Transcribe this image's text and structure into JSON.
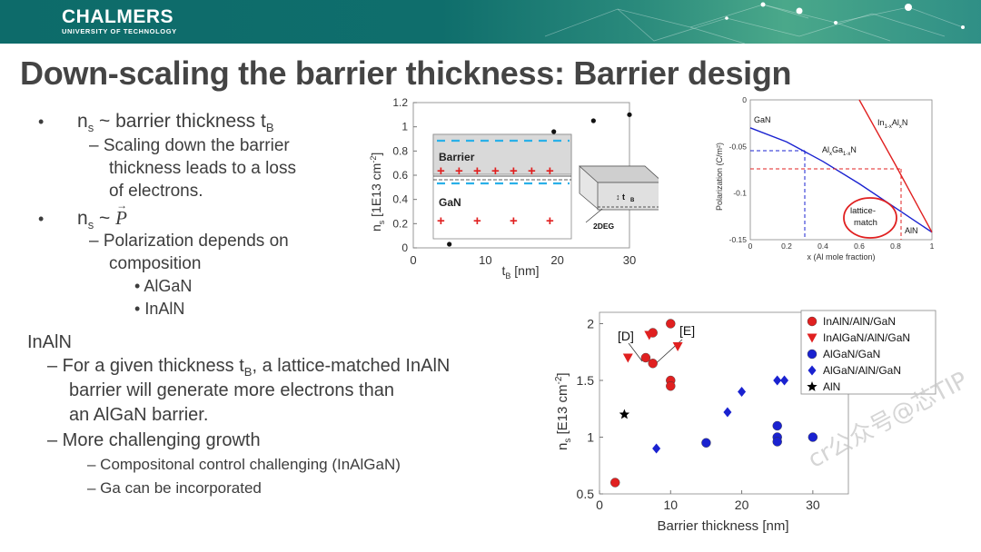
{
  "header": {
    "brand_name": "CHALMERS",
    "brand_sub": "UNIVERSITY OF TECHNOLOGY",
    "colors": {
      "bar": "#0f6e6c",
      "text": "#ffffff"
    }
  },
  "title": "Down-scaling the barrier thickness: Barrier design",
  "bullets": {
    "b1_main": "n",
    "b1_sub": "s",
    "b1_rest": " ~ barrier thickness t",
    "b1_rest_sub": "B",
    "b1_detail": [
      "– Scaling down the barrier",
      "thickness leads to a loss",
      "of electrons."
    ],
    "b2_main": "n",
    "b2_sub": "s",
    "b2_rest": " ~ ",
    "b2_vec": "P",
    "b2_detail": [
      "– Polarization depends on",
      "composition"
    ],
    "b2_items": [
      "AlGaN",
      "InAlN"
    ]
  },
  "inaln": {
    "heading": "InAlN",
    "points": [
      {
        "pre": "– For a given thickness t",
        "sub": "B",
        "post": ", a lattice-matched InAlN"
      },
      {
        "pre": "barrier will generate more electrons than",
        "sub": "",
        "post": ""
      },
      {
        "pre": "an AlGaN barrier.",
        "sub": "",
        "post": ""
      },
      {
        "pre": "– More challenging growth",
        "sub": "",
        "post": ""
      }
    ],
    "subpoints": [
      "– Compositonal control challenging (InAlGaN)",
      "– Ga can be incorporated"
    ]
  },
  "watermark": "公众号@芯TIP",
  "watermark_prefix": "cr",
  "chart_data": [
    {
      "type": "scatter",
      "title": "",
      "xlabel": "t_B [nm]",
      "ylabel": "n_s [1E13 cm^-2]",
      "xlim": [
        0,
        30
      ],
      "ylim": [
        0,
        1.2
      ],
      "xticks": [
        "0",
        "10",
        "20",
        "30"
      ],
      "yticks": [
        "0",
        "0.2",
        "0.4",
        "0.6",
        "0.8",
        "1",
        "1.2"
      ],
      "series": [
        {
          "name": "data",
          "x": [
            5,
            19.5,
            25,
            30
          ],
          "y": [
            0.03,
            0.96,
            1.05,
            1.1
          ]
        }
      ],
      "inset": {
        "barrier": "Barrier",
        "gan": "GaN",
        "tb": "t_B",
        "twodeg": "2DEG"
      }
    },
    {
      "type": "line",
      "xlabel": "x (Al mole fraction)",
      "ylabel": "Polarization (C/m²)",
      "xlim": [
        0,
        1
      ],
      "ylim": [
        -0.15,
        0
      ],
      "xticks": [
        "0",
        "0.2",
        "0.4",
        "0.6",
        "0.8",
        "1"
      ],
      "yticks": [
        "0",
        "-0.05",
        "-0.1",
        "-0.15"
      ],
      "series": [
        {
          "name": "AlxGa1-xN",
          "x": [
            0,
            0.2,
            0.4,
            0.6,
            0.8,
            1
          ],
          "y": [
            -0.03,
            -0.045,
            -0.066,
            -0.09,
            -0.116,
            -0.142
          ]
        },
        {
          "name": "In1-xAlxN",
          "x": [
            0.6,
            0.8,
            1
          ],
          "y": [
            0,
            -0.07,
            -0.142
          ]
        }
      ],
      "labels": {
        "gan": "GaN",
        "inaln": "In1-xAlxN",
        "algan": "AlxGa1-xN",
        "lattice1": "lattice-",
        "lattice2": "match",
        "aln": "AlN"
      }
    },
    {
      "type": "scatter",
      "xlabel": "Barrier thickness [nm]",
      "ylabel": "n_s [E13 cm^-2]",
      "xlim": [
        0,
        35
      ],
      "ylim": [
        0.5,
        2.1
      ],
      "xticks": [
        "0",
        "10",
        "20",
        "30"
      ],
      "yticks": [
        "0.5",
        "1",
        "1.5",
        "2"
      ],
      "annotations": [
        "[D]",
        "[E]"
      ],
      "series": [
        {
          "name": "InAlN/AlN/GaN",
          "marker": "circle",
          "color": "#e02020",
          "x": [
            2.2,
            6.5,
            7.5,
            7.5,
            10,
            10,
            10
          ],
          "y": [
            0.6,
            1.7,
            1.65,
            1.92,
            2.0,
            1.5,
            1.45
          ]
        },
        {
          "name": "InAlGaN/AlN/GaN",
          "marker": "triangle",
          "color": "#e02020",
          "x": [
            4,
            7,
            11
          ],
          "y": [
            1.7,
            1.9,
            1.8
          ]
        },
        {
          "name": "AlGaN/GaN",
          "marker": "circle",
          "color": "#1a22d0",
          "x": [
            15,
            25,
            25,
            25,
            30
          ],
          "y": [
            0.95,
            1.1,
            1.0,
            0.96,
            1.0
          ]
        },
        {
          "name": "AlGaN/AlN/GaN",
          "marker": "diamond",
          "color": "#1a22d0",
          "x": [
            8,
            18,
            20,
            25,
            26
          ],
          "y": [
            0.9,
            1.22,
            1.4,
            1.5,
            1.5
          ]
        },
        {
          "name": "AlN",
          "marker": "star",
          "color": "#000000",
          "x": [
            3.5
          ],
          "y": [
            1.2
          ]
        }
      ]
    }
  ]
}
